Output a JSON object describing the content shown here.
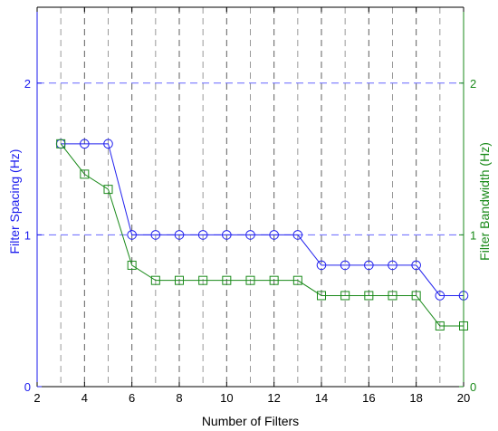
{
  "chart_data": {
    "type": "line",
    "xlabel": "Number of Filters",
    "ylabel_left": "Filter Spacing (Hz)",
    "ylabel_right": "Filter Bandwidth (Hz)",
    "xlim": [
      2,
      20
    ],
    "ylim_left": [
      0,
      2.5
    ],
    "ylim_right": [
      0,
      2.5
    ],
    "x_ticks": [
      "2",
      "4",
      "6",
      "8",
      "10",
      "12",
      "14",
      "16",
      "18",
      "20"
    ],
    "y_ticks_left": [
      "0",
      "1",
      "2"
    ],
    "y_ticks_right": [
      "0",
      "1",
      "2"
    ],
    "grid": {
      "vertical": "dashed",
      "horizontal_at": [
        1,
        2
      ],
      "horizontal_color": "#6666ff"
    },
    "legend": "none",
    "x": [
      3,
      4,
      5,
      6,
      7,
      8,
      9,
      10,
      11,
      12,
      13,
      14,
      15,
      16,
      17,
      18,
      19,
      20
    ],
    "series": [
      {
        "axis": "left",
        "marker": "circle",
        "color": "#2222ee",
        "values": [
          1.6,
          1.6,
          1.6,
          1.0,
          1.0,
          1.0,
          1.0,
          1.0,
          1.0,
          1.0,
          1.0,
          0.8,
          0.8,
          0.8,
          0.8,
          0.8,
          0.6,
          0.6
        ]
      },
      {
        "axis": "right",
        "marker": "square",
        "color": "#1a8a1a",
        "values": [
          1.6,
          1.4,
          1.3,
          0.8,
          0.7,
          0.7,
          0.7,
          0.7,
          0.7,
          0.7,
          0.7,
          0.6,
          0.6,
          0.6,
          0.6,
          0.6,
          0.4,
          0.4
        ]
      }
    ],
    "colors": {
      "left_axis": "#1a1aee",
      "right_axis": "#1a8a1a",
      "text": "#000000"
    }
  }
}
